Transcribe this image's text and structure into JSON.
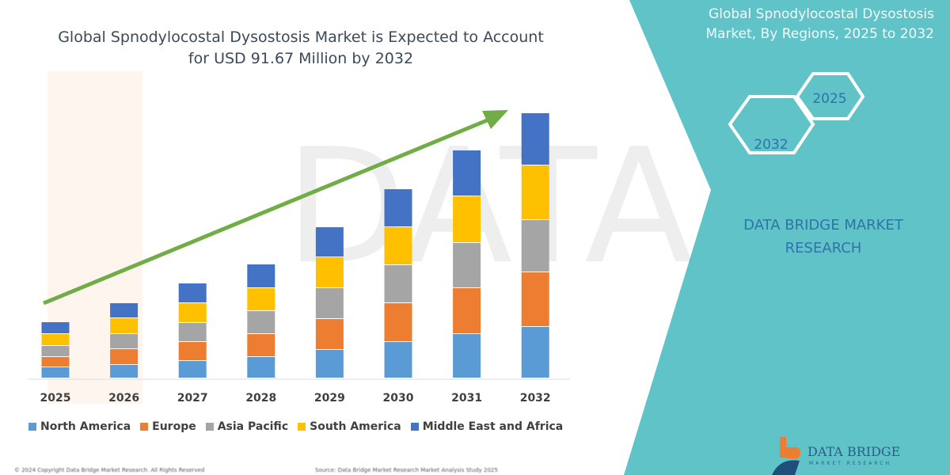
{
  "header": {
    "title_line1": "Global Spnodylocostal Dysostosis Market is Expected to Account",
    "title_line2": "for USD 91.67 Million by 2032"
  },
  "side_panel": {
    "title_line1": "Global Spnodylocostal Dysostosis",
    "title_line2": "Market, By Regions, 2025 to 2032",
    "hex_2025": "2025",
    "hex_2032": "2032",
    "brand_line1": "DATA BRIDGE MARKET",
    "brand_line2": "RESEARCH",
    "logo_text": "DATA BRIDGE",
    "logo_sub": "MARKET RESEARCH",
    "color": "#5fc3c8"
  },
  "footer": {
    "copyright": "© 2024 Copyright Data Bridge Market Research. All Rights Reserved",
    "source": "Source: Data Bridge Market Research Market Analysis Study 2025"
  },
  "chart_data": {
    "type": "bar",
    "stacked": true,
    "title": "Global Spnodylocostal Dysostosis Market is Expected to Account for USD 91.67 Million by 2032",
    "xlabel": "",
    "ylabel": "",
    "y_axis_shown": false,
    "grid": false,
    "legend_position": "bottom",
    "categories": [
      "2025",
      "2026",
      "2027",
      "2028",
      "2029",
      "2030",
      "2031",
      "2032"
    ],
    "series": [
      {
        "name": "North America",
        "color": "#5b9bd5",
        "values": [
          14,
          17,
          22,
          27,
          36,
          46,
          56,
          65
        ]
      },
      {
        "name": "Europe",
        "color": "#ed7d31",
        "values": [
          13,
          20,
          24,
          29,
          39,
          49,
          58,
          69
        ]
      },
      {
        "name": "Asia Pacific",
        "color": "#a5a5a5",
        "values": [
          14,
          19,
          24,
          29,
          39,
          48,
          57,
          66
        ]
      },
      {
        "name": "South America",
        "color": "#ffc000",
        "values": [
          15,
          20,
          25,
          29,
          39,
          48,
          59,
          69
        ]
      },
      {
        "name": "Middle East and Africa",
        "color": "#4472c4",
        "values": [
          15,
          19,
          25,
          30,
          38,
          48,
          58,
          66
        ]
      }
    ],
    "ylim": [
      0,
      335
    ],
    "annotations": [
      "upward growth arrow"
    ]
  }
}
